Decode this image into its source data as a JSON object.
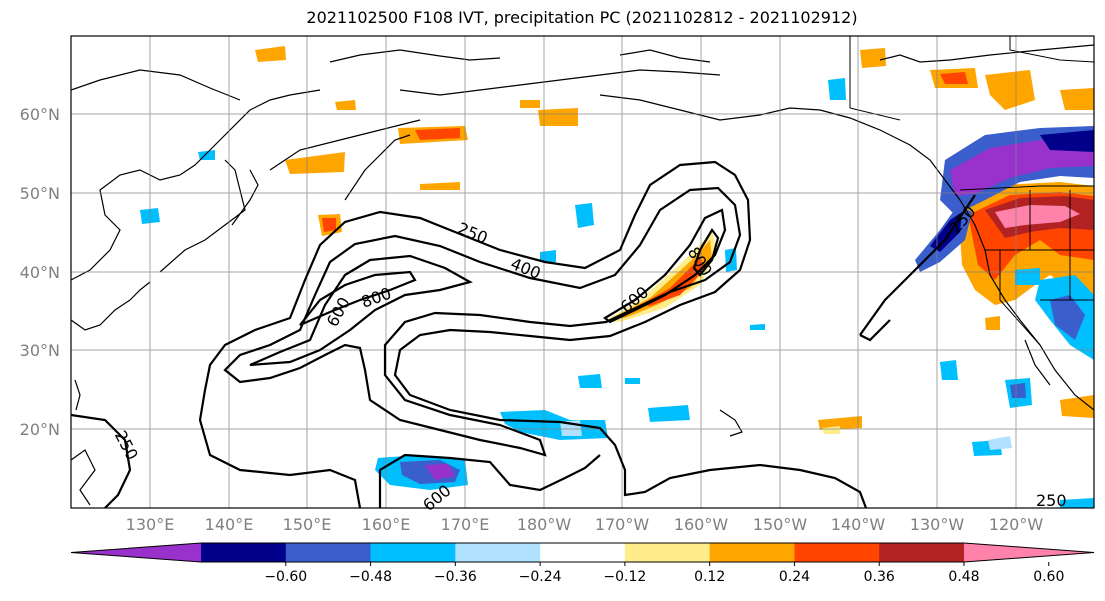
{
  "title": "2021102500 F108 IVT, precipitation PC (2021102812 - 2021102912)",
  "latitude_labels": [
    "60°N",
    "50°N",
    "40°N",
    "30°N",
    "20°N"
  ],
  "longitude_labels": [
    "130°E",
    "140°E",
    "150°E",
    "160°E",
    "170°E",
    "180°W",
    "170°W",
    "160°W",
    "150°W",
    "140°W",
    "130°W",
    "120°W"
  ],
  "contour_labels": [
    "250",
    "400",
    "800",
    "600",
    "600",
    "800",
    "250",
    "600",
    "250",
    "250"
  ],
  "colorbar": {
    "ticks": [
      "−0.60",
      "−0.48",
      "−0.36",
      "−0.24",
      "−0.12",
      "0.12",
      "0.24",
      "0.36",
      "0.48",
      "0.60"
    ],
    "colors": [
      "#9932cc",
      "#00008b",
      "#3a5fcd",
      "#00bfff",
      "#b0e2ff",
      "#ffffff",
      "#ffec8b",
      "#ffa500",
      "#ff4500",
      "#b22222",
      "#ff82ab"
    ]
  }
}
